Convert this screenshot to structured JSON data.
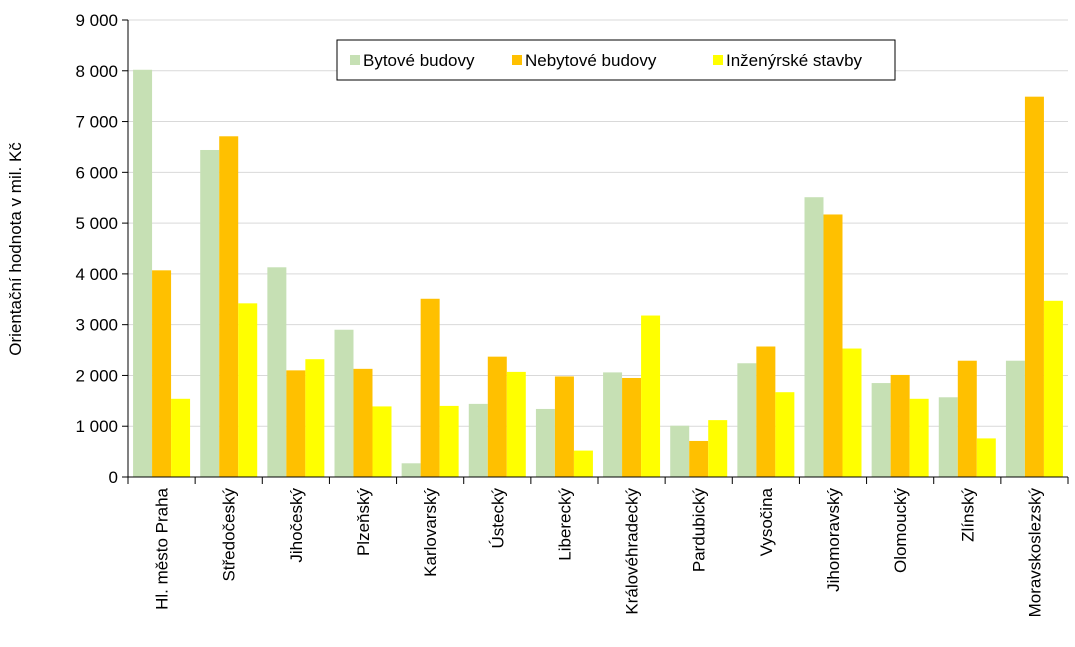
{
  "chart_data": {
    "type": "bar",
    "title": "",
    "xlabel": "",
    "ylabel": "Orientační hodnota v mil. Kč",
    "ylim": [
      0,
      9000
    ],
    "yticks": [
      0,
      1000,
      2000,
      3000,
      4000,
      5000,
      6000,
      7000,
      8000,
      9000
    ],
    "ytick_labels": [
      "0",
      "1 000",
      "2 000",
      "3 000",
      "4 000",
      "5 000",
      "6 000",
      "7 000",
      "8 000",
      "9 000"
    ],
    "grid": true,
    "legend_position": "top-right",
    "categories": [
      "Hl. město Praha",
      "Středočeský",
      "Jihočeský",
      "Plzeňský",
      "Karlovarský",
      "Ústecký",
      "Liberecký",
      "Královéhradecký",
      "Pardubický",
      "Vysočina",
      "Jihomoravský",
      "Olomoucký",
      "Zlínský",
      "Moravskoslezský"
    ],
    "series": [
      {
        "name": "Bytové budovy",
        "color": "#c6e0b4",
        "values": [
          8020,
          6440,
          4130,
          2900,
          270,
          1440,
          1340,
          2060,
          1010,
          2240,
          5510,
          1850,
          1570,
          2290
        ]
      },
      {
        "name": "Nebytové budovy",
        "color": "#ffc000",
        "values": [
          4070,
          6710,
          2100,
          2130,
          3510,
          2370,
          1980,
          1950,
          710,
          2570,
          5170,
          2010,
          2290,
          7490
        ]
      },
      {
        "name": "Inženýrské stavby",
        "color": "#ffff00",
        "values": [
          1540,
          3420,
          2320,
          1390,
          1400,
          2070,
          520,
          3180,
          1120,
          1670,
          2530,
          1540,
          760,
          3470
        ]
      }
    ]
  }
}
